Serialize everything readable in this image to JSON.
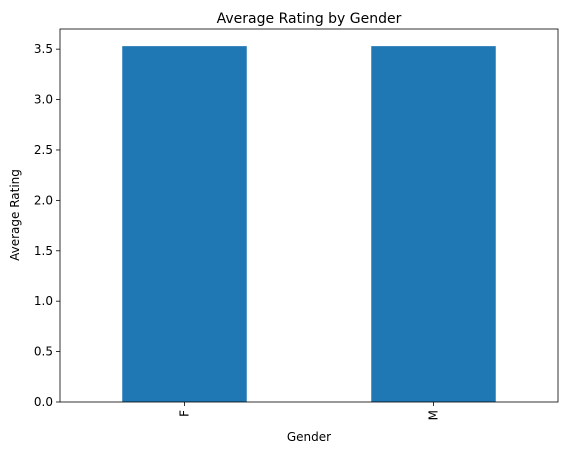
{
  "chart_data": {
    "type": "bar",
    "title": "Average Rating by Gender",
    "xlabel": "Gender",
    "ylabel": "Average Rating",
    "categories": [
      "F",
      "M"
    ],
    "values": [
      3.53,
      3.53
    ],
    "ylim": [
      0,
      3.7
    ],
    "yticks": [
      "0.0",
      "0.5",
      "1.0",
      "1.5",
      "2.0",
      "2.5",
      "3.0",
      "3.5"
    ],
    "bar_color": "#1f77b4",
    "grid": false,
    "legend": "none",
    "xtick_rotation": "vertical"
  }
}
